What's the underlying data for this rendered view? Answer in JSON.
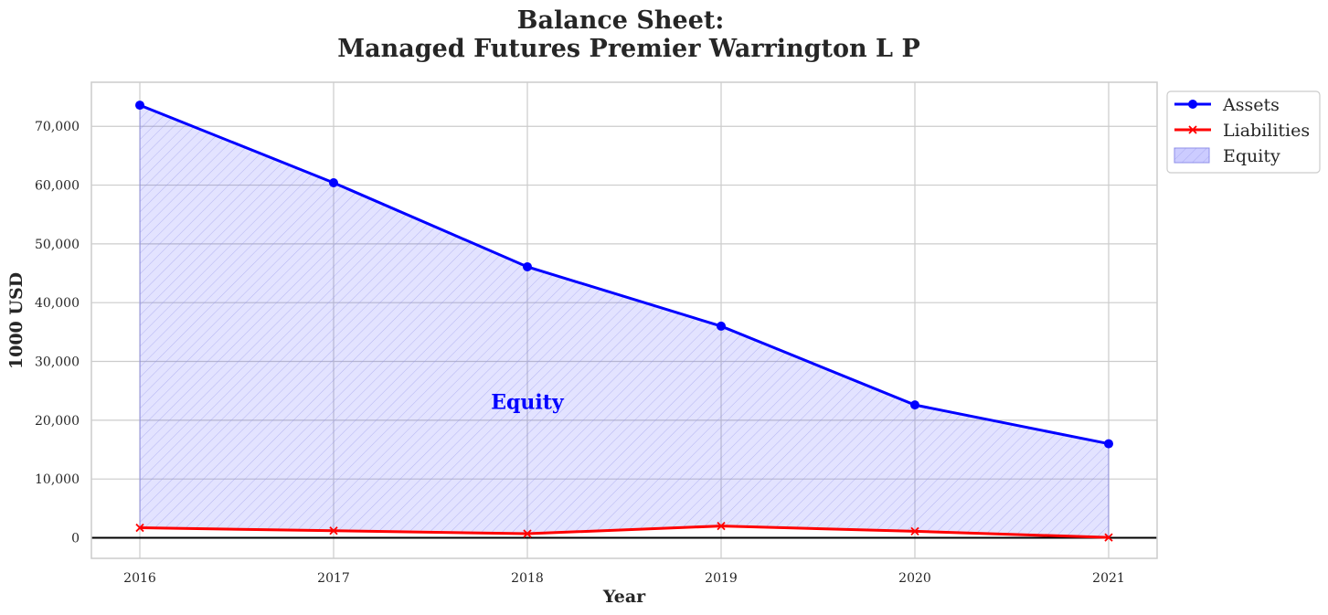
{
  "chart_data": {
    "type": "line",
    "title_lines": [
      "Balance Sheet:",
      "Managed Futures Premier Warrington L P"
    ],
    "xlabel": "Year",
    "ylabel": "1000 USD",
    "x": [
      "2016",
      "2017",
      "2018",
      "2019",
      "2020",
      "2021"
    ],
    "ylim": [
      -3500,
      77500
    ],
    "yticks": [
      0,
      10000,
      20000,
      30000,
      40000,
      50000,
      60000,
      70000
    ],
    "ytick_labels": [
      "0",
      "10,000",
      "20,000",
      "30,000",
      "40,000",
      "50,000",
      "60,000",
      "70,000"
    ],
    "grid": true,
    "legend_position": "upper right, outside plot",
    "series": [
      {
        "name": "Assets",
        "type": "line",
        "marker": "circle",
        "color": "#0000ff",
        "values": [
          73600,
          60400,
          46100,
          36000,
          22600,
          16000
        ]
      },
      {
        "name": "Liabilities",
        "type": "line",
        "marker": "x",
        "color": "#ff0000",
        "values": [
          1700,
          1200,
          700,
          2000,
          1100,
          50
        ]
      },
      {
        "name": "Equity",
        "type": "area",
        "color": "#0000ff",
        "hatch": "////",
        "between": [
          "Liabilities",
          "Assets"
        ]
      }
    ],
    "annotations": [
      {
        "text": "Equity",
        "x": "2018",
        "y": 23000,
        "color": "#0000ff"
      }
    ]
  }
}
